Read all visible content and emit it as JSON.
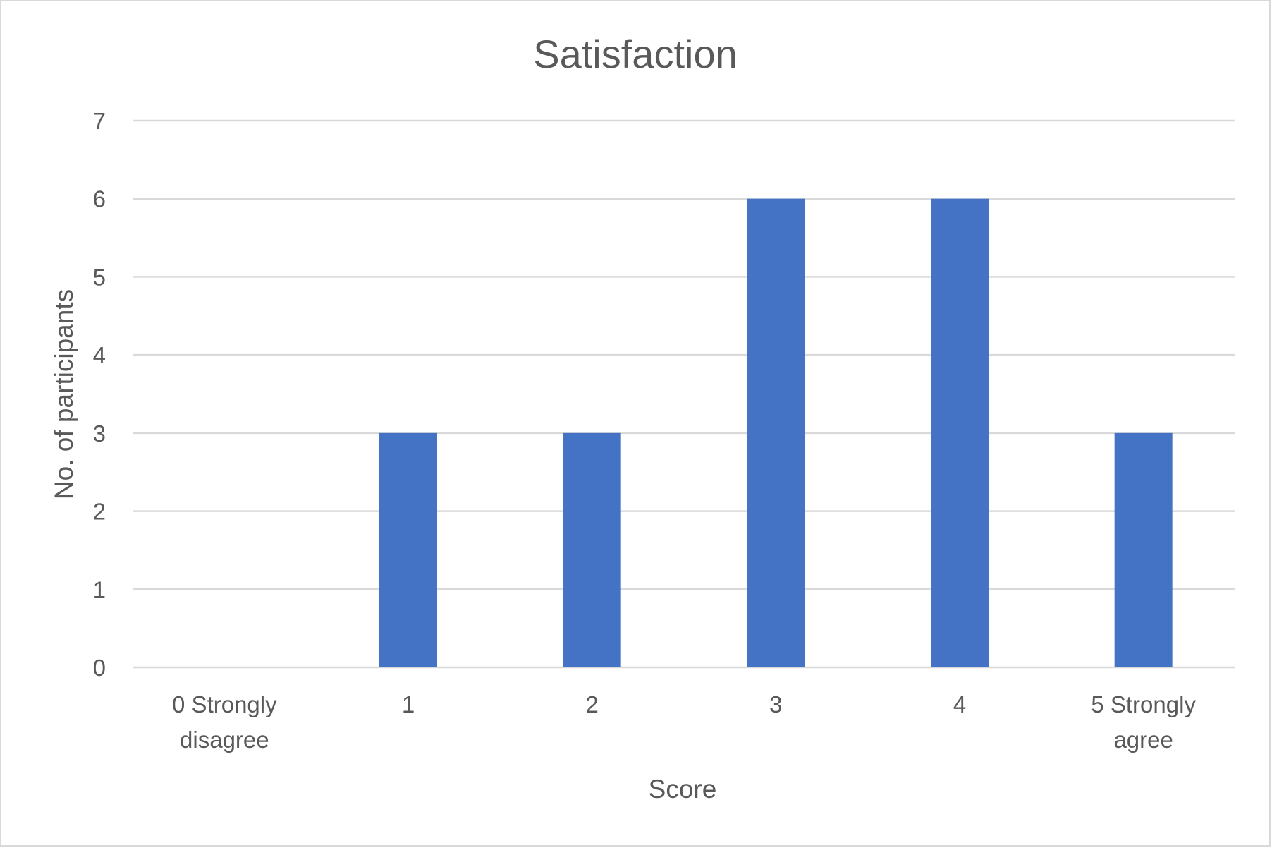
{
  "chart_data": {
    "type": "bar",
    "title": "Satisfaction",
    "xlabel": "Score",
    "ylabel": "No. of participants",
    "categories": [
      [
        "0 Strongly",
        "disagree"
      ],
      [
        "1"
      ],
      [
        "2"
      ],
      [
        "3"
      ],
      [
        "4"
      ],
      [
        "5 Strongly",
        "agree"
      ]
    ],
    "values": [
      0,
      3,
      3,
      6,
      6,
      3
    ],
    "ylim": [
      0,
      7
    ],
    "yticks": [
      "0",
      "1",
      "2",
      "3",
      "4",
      "5",
      "6",
      "7"
    ],
    "grid": true,
    "legend": "none",
    "bar_color": "#4472C4"
  }
}
